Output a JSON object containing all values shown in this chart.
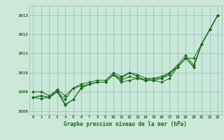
{
  "title": "Graphe pression niveau de la mer (hPa)",
  "bg_color": "#cde8d8",
  "plot_bg_color": "#c8e8d8",
  "grid_color": "#a0b8c0",
  "line_color": "#1a6b1a",
  "marker_color": "#1a6b1a",
  "xlim": [
    -0.5,
    23.5
  ],
  "ylim": [
    1007.8,
    1013.5
  ],
  "yticks": [
    1008,
    1009,
    1010,
    1011,
    1012,
    1013
  ],
  "xticks": [
    0,
    1,
    2,
    3,
    4,
    5,
    6,
    7,
    8,
    9,
    10,
    11,
    12,
    13,
    14,
    15,
    16,
    17,
    18,
    19,
    20,
    21,
    22,
    23
  ],
  "series": [
    [
      1008.7,
      1008.8,
      1008.7,
      1009.0,
      1008.3,
      1008.6,
      1009.2,
      1009.4,
      1009.5,
      1009.5,
      1009.9,
      1009.5,
      1009.6,
      1009.7,
      1009.6,
      1009.6,
      1009.5,
      1009.7,
      1010.3,
      1010.75,
      1010.3,
      1011.5,
      1012.25,
      1013.0
    ],
    [
      1008.7,
      1008.8,
      1008.7,
      1009.0,
      1008.6,
      1009.2,
      1009.3,
      1009.4,
      1009.5,
      1009.5,
      1009.9,
      1009.7,
      1010.0,
      1009.8,
      1009.6,
      1009.6,
      1009.7,
      1010.0,
      1010.3,
      1010.75,
      1010.75,
      1011.5,
      1012.25,
      1013.0
    ],
    [
      1008.7,
      1008.65,
      1008.7,
      1009.1,
      1008.35,
      1008.6,
      1009.2,
      1009.4,
      1009.5,
      1009.5,
      1009.9,
      1009.6,
      1009.8,
      1009.7,
      1009.6,
      1009.7,
      1009.7,
      1009.9,
      1010.3,
      1010.75,
      1010.3,
      1011.5,
      1012.25,
      1013.0
    ],
    [
      1009.0,
      1009.0,
      1008.8,
      1009.1,
      1008.8,
      1009.2,
      1009.4,
      1009.5,
      1009.6,
      1009.6,
      1010.0,
      1009.8,
      1010.0,
      1009.9,
      1009.7,
      1009.7,
      1009.8,
      1010.0,
      1010.4,
      1010.9,
      1010.4,
      1011.5,
      1012.25,
      1013.0
    ]
  ]
}
